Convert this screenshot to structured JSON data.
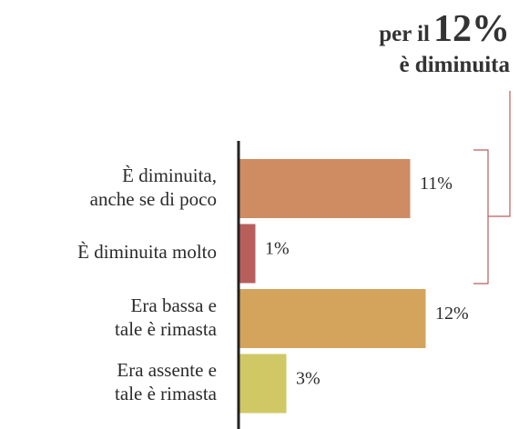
{
  "chart_data": {
    "type": "bar",
    "orientation": "horizontal",
    "annotation": [
      "per il",
      "12%",
      "è diminuita"
    ],
    "categories": [
      "È diminuita,\nanche se di poco",
      "È diminuita molto",
      "Era bassa e\ntale è rimasta",
      "Era assente e\ntale è rimasta"
    ],
    "values": [
      11,
      1,
      12,
      3
    ],
    "value_labels": [
      "11%",
      "1%",
      "12%",
      "3%"
    ],
    "colors": [
      "#cf8c63",
      "#b85f5c",
      "#d4a35c",
      "#cfc865"
    ],
    "xlim": [
      0,
      18
    ]
  }
}
